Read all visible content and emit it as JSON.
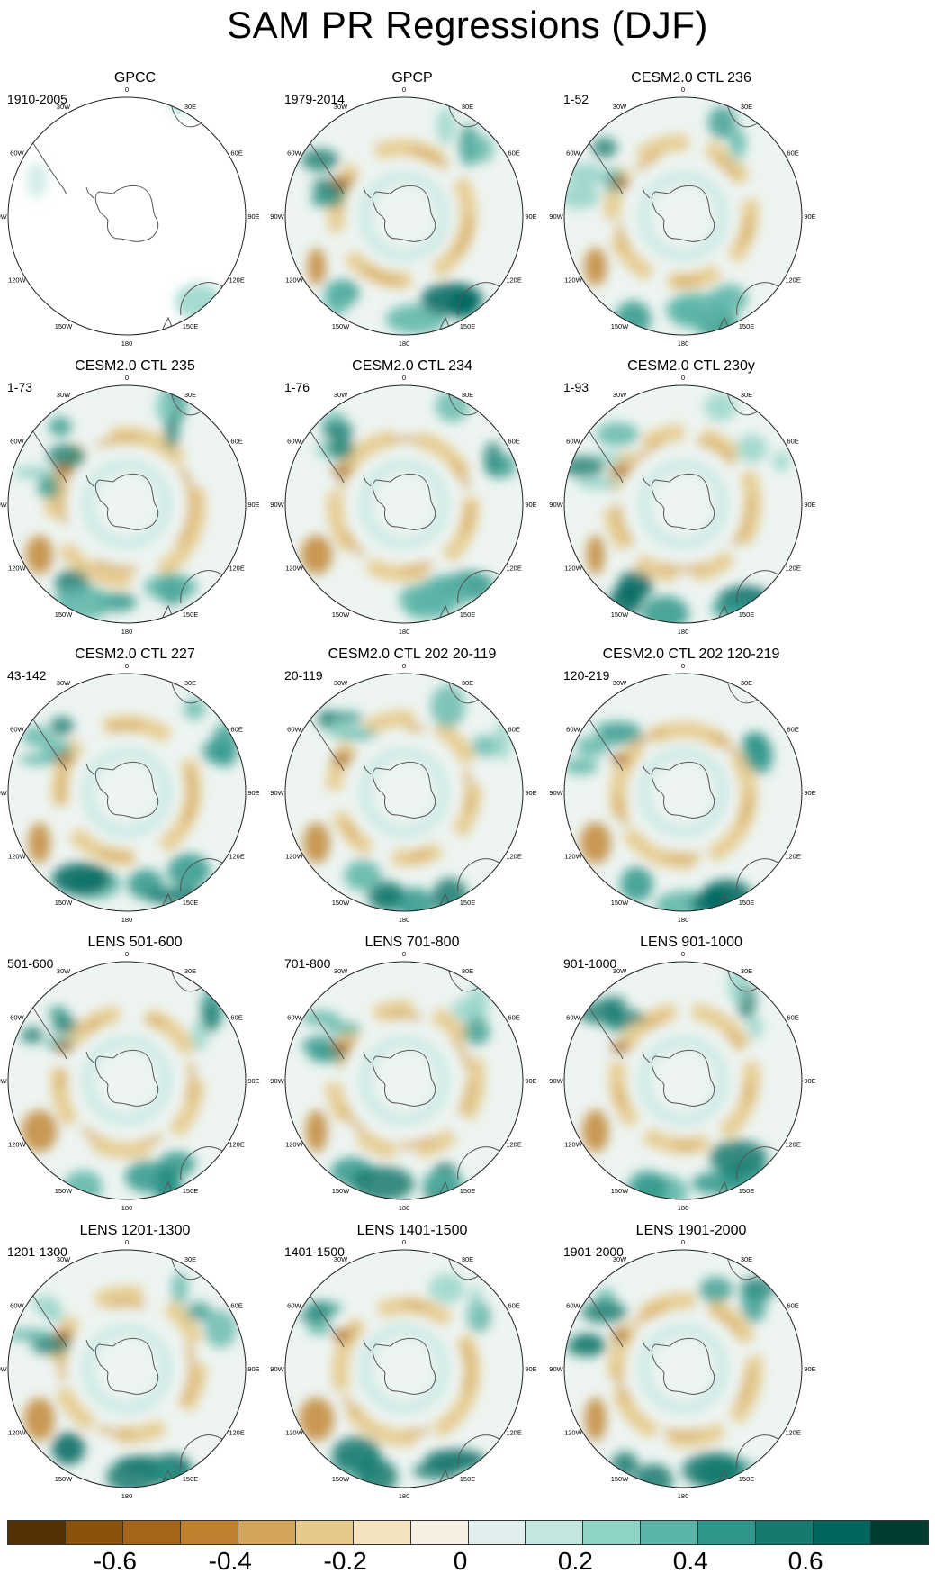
{
  "title": "SAM PR Regressions (DJF)",
  "longitude_labels": [
    "0",
    "30E",
    "60E",
    "90E",
    "120E",
    "150E",
    "180",
    "150W",
    "120W",
    "90W",
    "60W",
    "30W"
  ],
  "panels": [
    {
      "title": "GPCC",
      "period": "1910-2005",
      "style": "obs-land"
    },
    {
      "title": "GPCP",
      "period": "1979-2014",
      "style": "obs"
    },
    {
      "title": "CESM2.0 CTL 236",
      "period": "1-52",
      "style": "model"
    },
    {
      "title": "CESM2.0 CTL 235",
      "period": "1-73",
      "style": "model"
    },
    {
      "title": "CESM2.0 CTL 234",
      "period": "1-76",
      "style": "model"
    },
    {
      "title": "CESM2.0 CTL 230y",
      "period": "1-93",
      "style": "model"
    },
    {
      "title": "CESM2.0 CTL 227",
      "period": "43-142",
      "style": "model"
    },
    {
      "title": "CESM2.0 CTL 202 20-119",
      "period": "20-119",
      "style": "model"
    },
    {
      "title": "CESM2.0 CTL 202 120-219",
      "period": "120-219",
      "style": "model"
    },
    {
      "title": "LENS 501-600",
      "period": "501-600",
      "style": "model"
    },
    {
      "title": "LENS 701-800",
      "period": "701-800",
      "style": "model"
    },
    {
      "title": "LENS 901-1000",
      "period": "901-1000",
      "style": "model"
    },
    {
      "title": "LENS 1201-1300",
      "period": "1201-1300",
      "style": "model"
    },
    {
      "title": "LENS 1401-1500",
      "period": "1401-1500",
      "style": "model"
    },
    {
      "title": "LENS 1901-2000",
      "period": "1901-2000",
      "style": "model"
    }
  ],
  "colorbar": {
    "colors": [
      "#543005",
      "#8c510a",
      "#a6661a",
      "#bf812d",
      "#d4a45a",
      "#e6c98a",
      "#f3e3bd",
      "#f5f0e1",
      "#e0eeee",
      "#c2e6e0",
      "#8fd2c6",
      "#5ab4a7",
      "#2f968a",
      "#177a6e",
      "#01665e",
      "#003c30"
    ],
    "tick_labels": [
      "-0.6",
      "-0.4",
      "-0.2",
      "0",
      "0.2",
      "0.4",
      "0.6"
    ],
    "tick_positions": [
      2,
      4,
      6,
      8,
      10,
      12,
      14
    ]
  }
}
